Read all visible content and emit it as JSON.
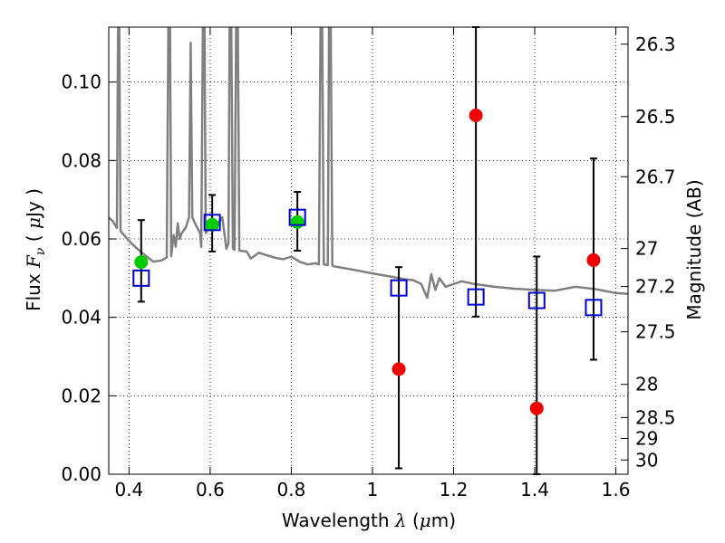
{
  "chart_data": {
    "type": "scatter",
    "xlabel": {
      "pre": "Wavelength  ",
      "symbol": "λ",
      "post": " (",
      "mu": "μ",
      "unit": "m)"
    },
    "ylabel": {
      "pre": "Flux  ",
      "symbol": "F",
      "sub": "ν",
      "open": "  (  ",
      "mu": "μ",
      "unit": "Jy  )"
    },
    "y2label": "Magnitude (AB)",
    "xlim": [
      0.35,
      1.63
    ],
    "ylim": [
      0.0,
      0.114
    ],
    "x_ticks": [
      0.4,
      0.6,
      0.8,
      1.0,
      1.2,
      1.4,
      1.6
    ],
    "x_tick_labels": [
      "0.4",
      "0.6",
      "0.8",
      "1",
      "1.2",
      "1.4",
      "1.6"
    ],
    "y_ticks": [
      0.0,
      0.02,
      0.04,
      0.06,
      0.08,
      0.1
    ],
    "y_tick_labels": [
      "0.00",
      "0.02",
      "0.04",
      "0.06",
      "0.08",
      "0.10"
    ],
    "y2_ticks": [
      {
        "label": "26.3",
        "mag": 26.3
      },
      {
        "label": "26.5",
        "mag": 26.5
      },
      {
        "label": "26.7",
        "mag": 26.7
      },
      {
        "label": "27",
        "mag": 27.0
      },
      {
        "label": "27.2",
        "mag": 27.2
      },
      {
        "label": "27.5",
        "mag": 27.5
      },
      {
        "label": "28",
        "mag": 28.0
      },
      {
        "label": "28.5",
        "mag": 28.5
      },
      {
        "label": "29",
        "mag": 29.0
      },
      {
        "label": "30",
        "mag": 30.0
      }
    ],
    "grid": true,
    "series": [
      {
        "name": "model spectrum",
        "kind": "line",
        "color": "#808080",
        "points": [
          [
            0.35,
            0.0655
          ],
          [
            0.36,
            0.0645
          ],
          [
            0.37,
            0.0628
          ],
          [
            0.373,
            0.115
          ],
          [
            0.376,
            0.115
          ],
          [
            0.379,
            0.062
          ],
          [
            0.4,
            0.0595
          ],
          [
            0.42,
            0.0575
          ],
          [
            0.44,
            0.0558
          ],
          [
            0.46,
            0.0542
          ],
          [
            0.48,
            0.0545
          ],
          [
            0.493,
            0.0553
          ],
          [
            0.497,
            0.115
          ],
          [
            0.501,
            0.115
          ],
          [
            0.504,
            0.0556
          ],
          [
            0.51,
            0.061
          ],
          [
            0.515,
            0.058
          ],
          [
            0.52,
            0.064
          ],
          [
            0.525,
            0.06
          ],
          [
            0.53,
            0.0615
          ],
          [
            0.54,
            0.063
          ],
          [
            0.548,
            0.0655
          ],
          [
            0.552,
            0.11
          ],
          [
            0.556,
            0.0655
          ],
          [
            0.565,
            0.0635
          ],
          [
            0.575,
            0.0615
          ],
          [
            0.578,
            0.058
          ],
          [
            0.582,
            0.115
          ],
          [
            0.586,
            0.115
          ],
          [
            0.589,
            0.0615
          ],
          [
            0.6,
            0.063
          ],
          [
            0.61,
            0.0635
          ],
          [
            0.62,
            0.064
          ],
          [
            0.63,
            0.0655
          ],
          [
            0.64,
            0.0575
          ],
          [
            0.645,
            0.0588
          ],
          [
            0.648,
            0.115
          ],
          [
            0.652,
            0.115
          ],
          [
            0.656,
            0.0575
          ],
          [
            0.66,
            0.0572
          ],
          [
            0.664,
            0.115
          ],
          [
            0.668,
            0.115
          ],
          [
            0.672,
            0.057
          ],
          [
            0.69,
            0.0568
          ],
          [
            0.7,
            0.055
          ],
          [
            0.72,
            0.0565
          ],
          [
            0.74,
            0.0558
          ],
          [
            0.76,
            0.0552
          ],
          [
            0.78,
            0.0548
          ],
          [
            0.8,
            0.0555
          ],
          [
            0.82,
            0.0542
          ],
          [
            0.84,
            0.0535
          ],
          [
            0.86,
            0.0538
          ],
          [
            0.868,
            0.0535
          ],
          [
            0.872,
            0.115
          ],
          [
            0.876,
            0.115
          ],
          [
            0.88,
            0.0535
          ],
          [
            0.89,
            0.0533
          ],
          [
            0.893,
            0.115
          ],
          [
            0.897,
            0.115
          ],
          [
            0.901,
            0.0533
          ],
          [
            0.905,
            0.053
          ],
          [
            0.95,
            0.0522
          ],
          [
            1.0,
            0.0512
          ],
          [
            1.05,
            0.0503
          ],
          [
            1.08,
            0.0497
          ],
          [
            1.1,
            0.0495
          ],
          [
            1.12,
            0.0485
          ],
          [
            1.135,
            0.045
          ],
          [
            1.145,
            0.051
          ],
          [
            1.155,
            0.047
          ],
          [
            1.165,
            0.05
          ],
          [
            1.18,
            0.0478
          ],
          [
            1.2,
            0.0485
          ],
          [
            1.22,
            0.0492
          ],
          [
            1.25,
            0.0485
          ],
          [
            1.3,
            0.0478
          ],
          [
            1.35,
            0.0473
          ],
          [
            1.4,
            0.047
          ],
          [
            1.45,
            0.0468
          ],
          [
            1.5,
            0.0478
          ],
          [
            1.55,
            0.0472
          ],
          [
            1.6,
            0.0462
          ],
          [
            1.63,
            0.046
          ]
        ]
      },
      {
        "name": "green points",
        "kind": "points",
        "color": "#00cc00",
        "points": [
          [
            0.43,
            0.0541
          ],
          [
            0.605,
            0.0636
          ],
          [
            0.815,
            0.0643
          ]
        ]
      },
      {
        "name": "red points",
        "kind": "points",
        "color": "#ee0000",
        "points": [
          [
            1.065,
            0.0268
          ],
          [
            1.255,
            0.0915
          ],
          [
            1.405,
            0.0168
          ],
          [
            1.545,
            0.0546
          ]
        ]
      },
      {
        "name": "blue squares with error bars",
        "kind": "squares",
        "color": "#0000cc",
        "points": [
          {
            "x": 0.43,
            "y": 0.05,
            "lo": 0.044,
            "hi": 0.0648
          },
          {
            "x": 0.605,
            "y": 0.0642,
            "lo": 0.0568,
            "hi": 0.0712
          },
          {
            "x": 0.815,
            "y": 0.0655,
            "lo": 0.057,
            "hi": 0.072
          },
          {
            "x": 1.065,
            "y": 0.0475,
            "lo": 0.0015,
            "hi": 0.0528
          },
          {
            "x": 1.255,
            "y": 0.0452,
            "lo": 0.0402,
            "hi": 0.114
          },
          {
            "x": 1.405,
            "y": 0.0443,
            "lo": 0.0,
            "hi": 0.0555
          },
          {
            "x": 1.545,
            "y": 0.0425,
            "lo": 0.0292,
            "hi": 0.0805
          }
        ]
      }
    ]
  }
}
